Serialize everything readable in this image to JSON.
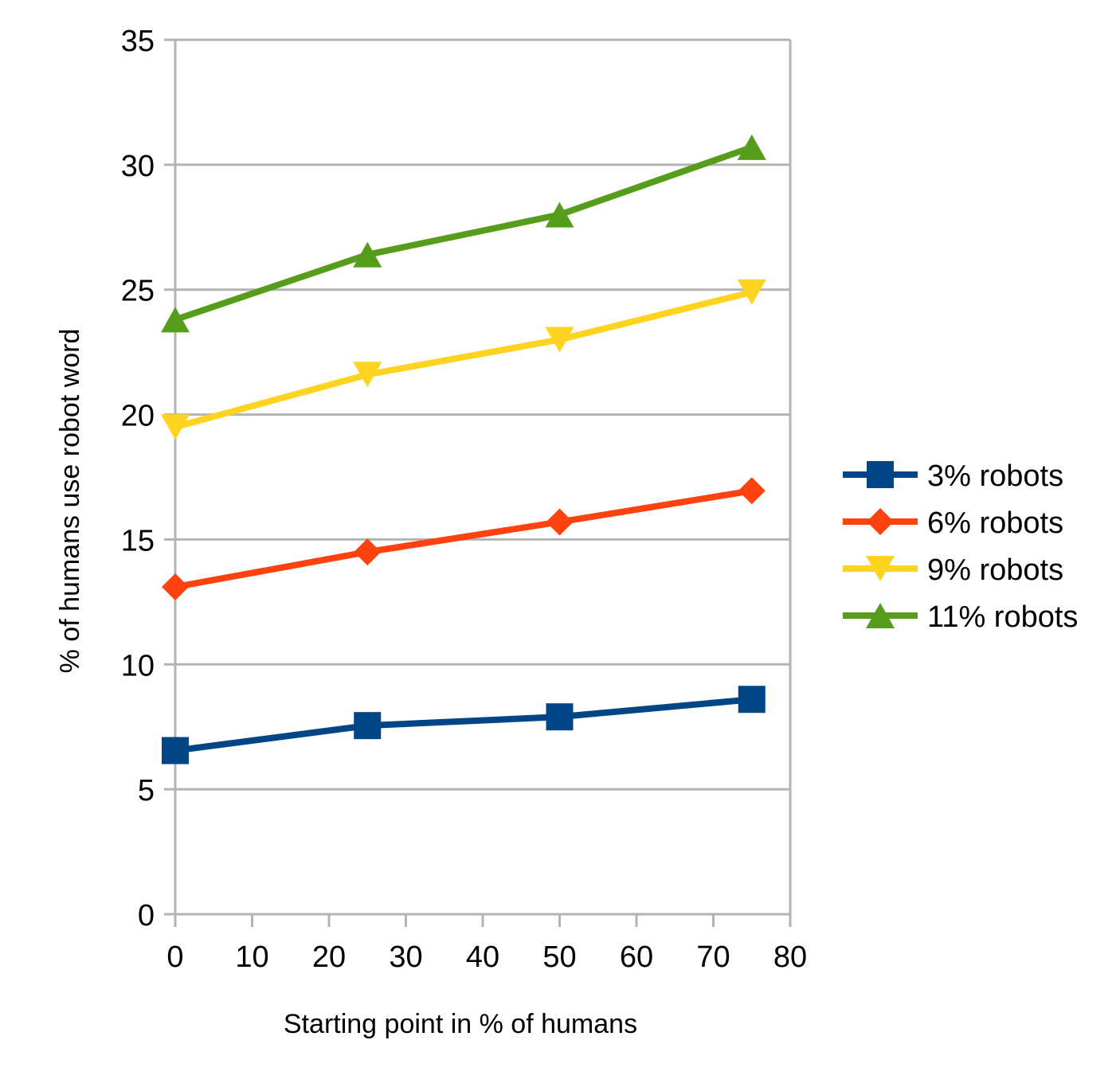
{
  "chart_data": {
    "type": "line",
    "xlabel": "Starting point in % of humans",
    "ylabel": "% of humans use robot word",
    "xlim": [
      0,
      80
    ],
    "ylim": [
      0,
      35
    ],
    "xticks": [
      0,
      10,
      20,
      30,
      40,
      50,
      60,
      70,
      80
    ],
    "yticks": [
      0,
      5,
      10,
      15,
      20,
      25,
      30,
      35
    ],
    "grid": "horizontal",
    "legend_position": "right",
    "x": [
      0,
      25,
      50,
      75
    ],
    "series": [
      {
        "name": "3% robots",
        "values": [
          6.55,
          7.55,
          7.9,
          8.6
        ],
        "color": "#004586",
        "marker": "square"
      },
      {
        "name": "6% robots",
        "values": [
          13.1,
          14.5,
          15.7,
          16.95
        ],
        "color": "#ff420e",
        "marker": "diamond"
      },
      {
        "name": "9% robots",
        "values": [
          19.5,
          21.6,
          23.0,
          24.9
        ],
        "color": "#ffd320",
        "marker": "triangle-down"
      },
      {
        "name": "11% robots",
        "values": [
          23.8,
          26.4,
          28.0,
          30.7
        ],
        "color": "#579d1c",
        "marker": "triangle-up"
      }
    ]
  }
}
